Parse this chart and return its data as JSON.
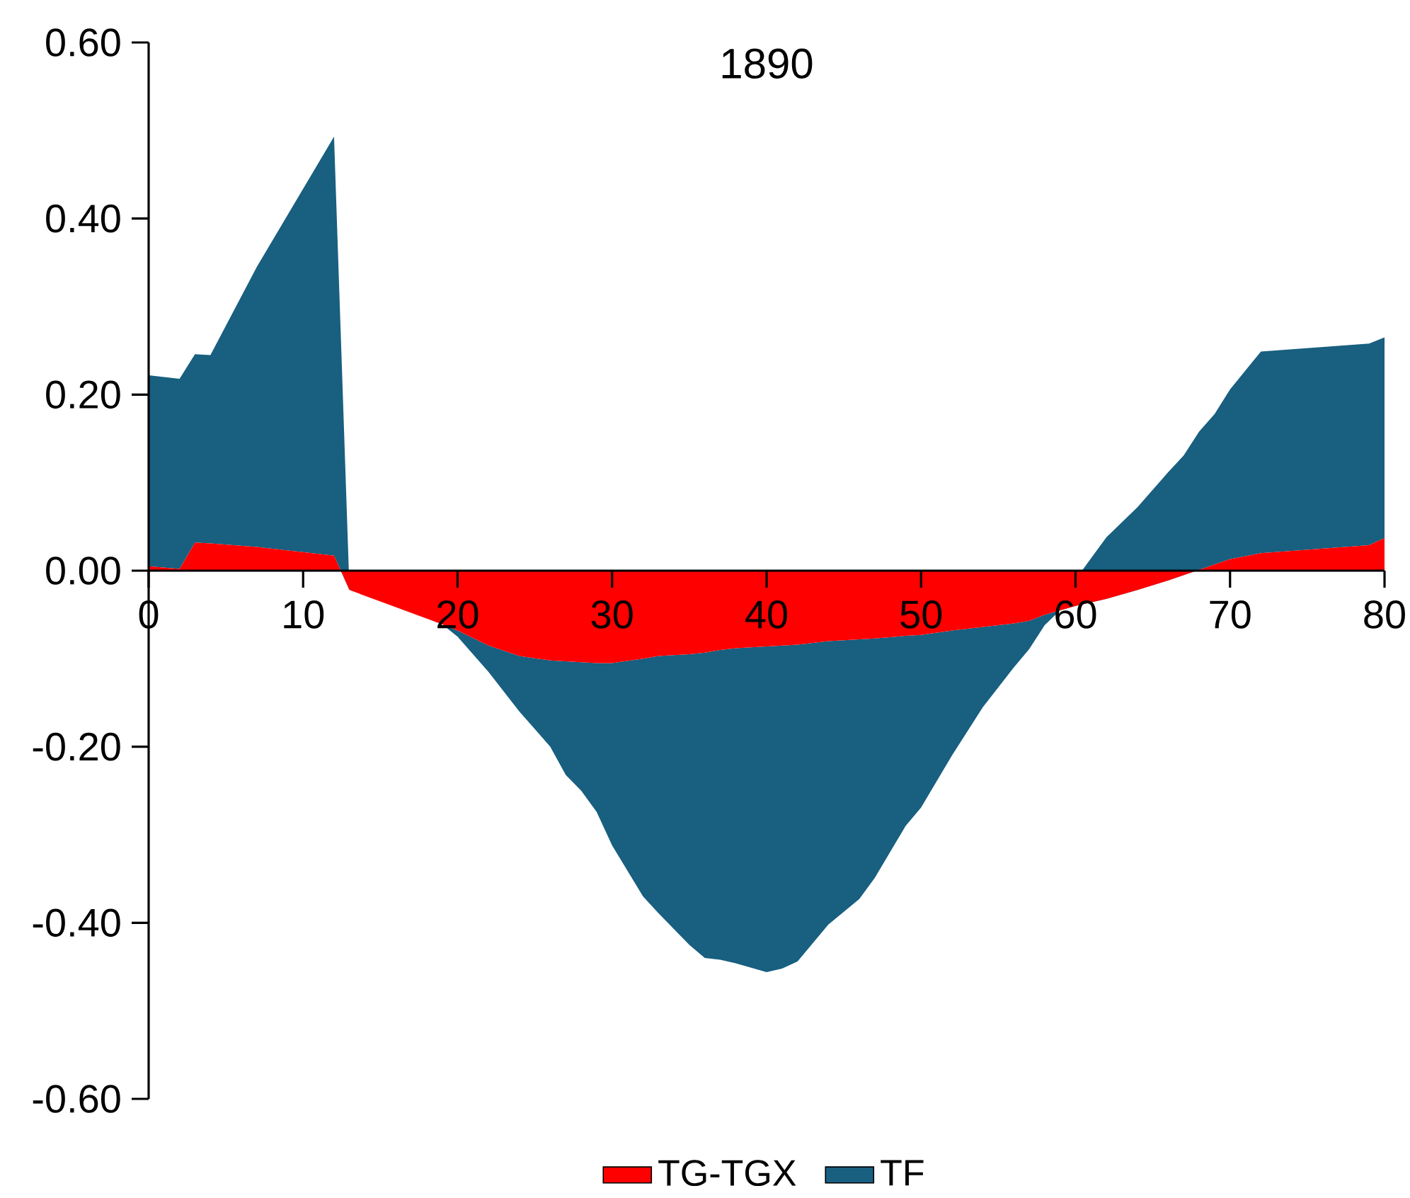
{
  "chart_data": {
    "type": "area",
    "title": "1890",
    "stacked": true,
    "legend": "bottom",
    "x": [
      0,
      2,
      3,
      4,
      7,
      12,
      13,
      15,
      19,
      20,
      22,
      24,
      26,
      27,
      28,
      29,
      30,
      32,
      33,
      35,
      36,
      37,
      38,
      40,
      41,
      42,
      44,
      46,
      47,
      49,
      50,
      52,
      54,
      56,
      57,
      58,
      59,
      60,
      62,
      64,
      66,
      67,
      68,
      69,
      70,
      72,
      79,
      80
    ],
    "series": [
      {
        "name": "TG-TGX",
        "color": "#ff0000",
        "values": [
          0.005,
          0.002,
          0.032,
          0.031,
          0.027,
          0.017,
          -0.022,
          -0.035,
          -0.061,
          -0.068,
          -0.085,
          -0.097,
          -0.102,
          -0.103,
          -0.104,
          -0.105,
          -0.105,
          -0.1,
          -0.097,
          -0.095,
          -0.093,
          -0.09,
          -0.088,
          -0.086,
          -0.085,
          -0.084,
          -0.08,
          -0.078,
          -0.077,
          -0.074,
          -0.073,
          -0.068,
          -0.064,
          -0.06,
          -0.057,
          -0.05,
          -0.045,
          -0.04,
          -0.032,
          -0.022,
          -0.011,
          -0.005,
          0.001,
          0.007,
          0.013,
          0.02,
          0.029,
          0.037
        ]
      },
      {
        "name": "TF",
        "color": "#185f80",
        "values": [
          0.217,
          0.216,
          0.214,
          0.214,
          0.318,
          0.476,
          0,
          0,
          0,
          -0.007,
          -0.03,
          -0.063,
          -0.098,
          -0.129,
          -0.146,
          -0.169,
          -0.207,
          -0.27,
          -0.292,
          -0.33,
          -0.347,
          -0.352,
          -0.358,
          -0.37,
          -0.367,
          -0.36,
          -0.322,
          -0.295,
          -0.272,
          -0.216,
          -0.196,
          -0.142,
          -0.091,
          -0.05,
          -0.032,
          -0.012,
          0,
          0.03,
          0.07,
          0.094,
          0.123,
          0.136,
          0.157,
          0.171,
          0.193,
          0.229,
          0.229,
          0.228
        ]
      }
    ],
    "xlim": [
      0,
      80
    ],
    "xticks": [
      0,
      10,
      20,
      30,
      40,
      50,
      60,
      70,
      80
    ],
    "ylim": [
      -0.6,
      0.6
    ],
    "yticks": [
      {
        "value": -0.6,
        "label": "-0.60"
      },
      {
        "value": -0.4,
        "label": "-0.40"
      },
      {
        "value": -0.2,
        "label": "-0.20"
      },
      {
        "value": 0,
        "label": "0.00"
      },
      {
        "value": 0.2,
        "label": "0.20"
      },
      {
        "value": 0.4,
        "label": "0.40"
      },
      {
        "value": 0.6,
        "label": "0.60"
      }
    ]
  }
}
